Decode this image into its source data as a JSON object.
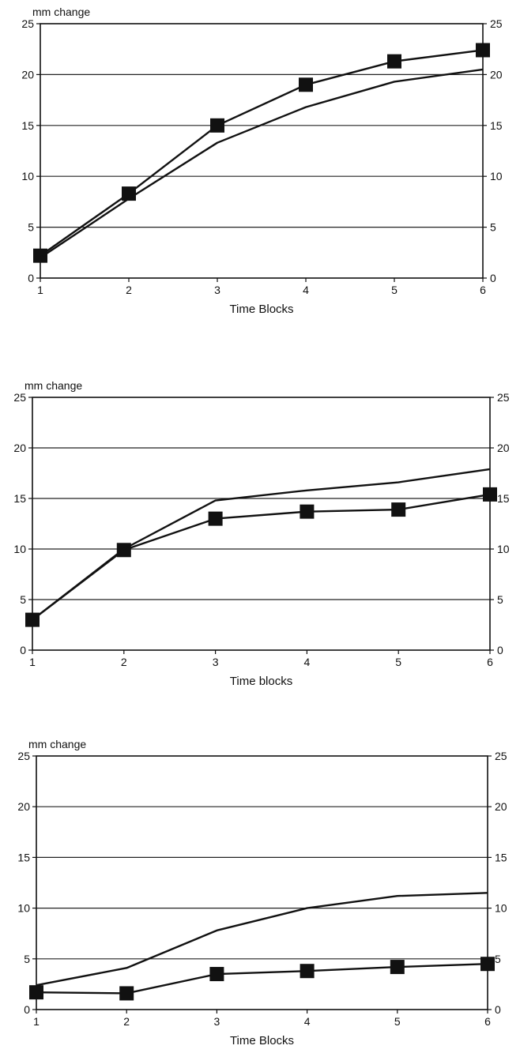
{
  "chart_data": [
    {
      "type": "line",
      "title": "",
      "ylabel": "mm change",
      "xlabel": "Time Blocks",
      "x": [
        1,
        2,
        3,
        4,
        5,
        6
      ],
      "xlim": [
        1,
        6
      ],
      "ylim": [
        0,
        25
      ],
      "yticks": [
        0,
        5,
        10,
        15,
        20,
        25
      ],
      "grid": true,
      "secondary_y_axis": true,
      "series": [
        {
          "marker": "square",
          "values": [
            2.2,
            8.3,
            15.0,
            19.0,
            21.3,
            22.4
          ]
        },
        {
          "marker": "none",
          "values": [
            2.0,
            7.8,
            13.3,
            16.8,
            19.3,
            20.5
          ]
        }
      ]
    },
    {
      "type": "line",
      "title": "",
      "ylabel": "mm change",
      "xlabel": "Time blocks",
      "x": [
        1,
        2,
        3,
        4,
        5,
        6
      ],
      "xlim": [
        1,
        6
      ],
      "ylim": [
        0,
        25
      ],
      "yticks": [
        0,
        5,
        10,
        15,
        20,
        25
      ],
      "grid": true,
      "secondary_y_axis": true,
      "series": [
        {
          "marker": "square",
          "values": [
            3.0,
            9.9,
            13.0,
            13.7,
            13.9,
            15.4
          ]
        },
        {
          "marker": "none",
          "values": [
            3.0,
            10.0,
            14.8,
            15.8,
            16.6,
            17.9
          ]
        }
      ]
    },
    {
      "type": "line",
      "title": "",
      "ylabel": "mm change",
      "xlabel": "Time Blocks",
      "x": [
        1,
        2,
        3,
        4,
        5,
        6
      ],
      "xlim": [
        1,
        6
      ],
      "ylim": [
        0,
        25
      ],
      "yticks": [
        0,
        5,
        10,
        15,
        20,
        25
      ],
      "grid": true,
      "secondary_y_axis": true,
      "series": [
        {
          "marker": "square",
          "values": [
            1.7,
            1.6,
            3.5,
            3.8,
            4.2,
            4.5
          ]
        },
        {
          "marker": "none",
          "values": [
            2.4,
            4.1,
            7.8,
            10.0,
            11.2,
            11.5
          ]
        }
      ]
    }
  ]
}
